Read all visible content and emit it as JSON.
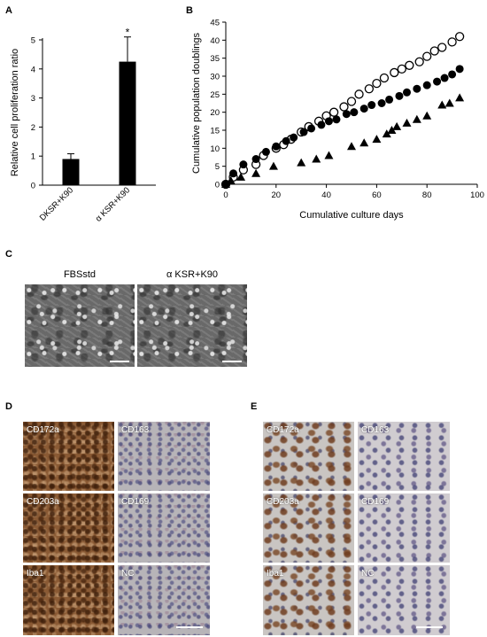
{
  "panels": {
    "a": "A",
    "b": "B",
    "c": "C",
    "d": "D",
    "e": "E"
  },
  "chart_data": [
    {
      "type": "bar",
      "panel": "A",
      "categories": [
        "DKSR+K90",
        "α KSR+K90"
      ],
      "values": [
        0.9,
        4.25
      ],
      "errors": [
        0.18,
        0.85
      ],
      "ylabel": "Relative cell proliferation ratio",
      "xlabel": "",
      "ylim": [
        0,
        5
      ],
      "yticks": [
        "0",
        "1",
        "2",
        "3",
        "4",
        "5"
      ],
      "annotation": "*",
      "bar_color": "#000000"
    },
    {
      "type": "scatter",
      "panel": "B",
      "xlabel": "Cumulative culture days",
      "ylabel": "Cumulative population doublings",
      "xlim": [
        0,
        100
      ],
      "ylim": [
        0,
        45
      ],
      "xticks": [
        "0",
        "20",
        "40",
        "60",
        "80",
        "100"
      ],
      "yticks": [
        "0",
        "5",
        "10",
        "15",
        "20",
        "25",
        "30",
        "35",
        "40",
        "45"
      ],
      "series": [
        {
          "marker": "open-circle",
          "x": [
            0,
            3,
            7,
            12,
            15,
            20,
            23,
            26,
            30,
            33,
            37,
            40,
            43,
            47,
            50,
            53,
            57,
            60,
            63,
            67,
            70,
            73,
            77,
            80,
            83,
            86,
            90,
            93
          ],
          "y": [
            0,
            2,
            4,
            5.5,
            8,
            10,
            11,
            12.5,
            14.5,
            16,
            17.5,
            19,
            20,
            21.5,
            23,
            25,
            26.5,
            28,
            29.5,
            31,
            32,
            33,
            34,
            35.5,
            37,
            38,
            39.5,
            41
          ]
        },
        {
          "marker": "filled-circle",
          "x": [
            0,
            3,
            7,
            12,
            16,
            20,
            24,
            27,
            31,
            34,
            38,
            41,
            44,
            48,
            51,
            55,
            58,
            62,
            65,
            69,
            72,
            76,
            80,
            84,
            87,
            90,
            93
          ],
          "y": [
            0,
            3,
            5.5,
            7,
            9,
            10.5,
            12,
            13,
            14.5,
            15.5,
            16.5,
            17.5,
            18,
            19.5,
            20,
            21,
            22,
            22.5,
            23.5,
            24.5,
            25.5,
            26.5,
            27.5,
            28.5,
            29.5,
            30.5,
            32
          ]
        },
        {
          "marker": "filled-triangle",
          "x": [
            0,
            2,
            6,
            12,
            19,
            30,
            36,
            41,
            50,
            55,
            60,
            64,
            66,
            68,
            72,
            76,
            80,
            86,
            89,
            93
          ],
          "y": [
            0,
            1,
            2,
            3,
            5,
            6,
            7,
            8,
            10.5,
            11.5,
            12.5,
            14,
            15,
            16,
            17,
            18,
            19,
            22,
            22.5,
            24
          ]
        }
      ]
    }
  ],
  "micrographs_c": {
    "left_title": "FBSstd",
    "right_title": "α KSR+K90"
  },
  "ihc_d": {
    "tiles": [
      {
        "label": "CD172a",
        "stain": "brown"
      },
      {
        "label": "CD163",
        "stain": "blue"
      },
      {
        "label": "CD203a",
        "stain": "brown"
      },
      {
        "label": "CD169",
        "stain": "blue"
      },
      {
        "label": "Iba1",
        "stain": "brown"
      },
      {
        "label": "NC",
        "stain": "blue"
      }
    ]
  },
  "ihc_e": {
    "tiles": [
      {
        "label": "CD172a",
        "stain": "brown"
      },
      {
        "label": "CD163",
        "stain": "blue"
      },
      {
        "label": "CD203a",
        "stain": "brown"
      },
      {
        "label": "CD169",
        "stain": "blue"
      },
      {
        "label": "Iba1",
        "stain": "brown"
      },
      {
        "label": "NC",
        "stain": "blue"
      }
    ]
  }
}
